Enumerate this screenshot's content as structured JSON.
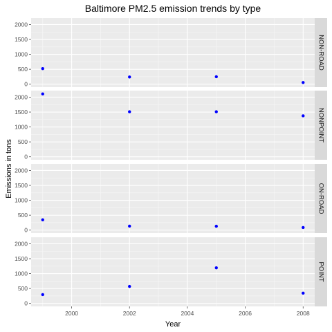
{
  "chart_data": {
    "type": "scatter",
    "title": "Baltimore PM2.5 emission trends by type",
    "xlabel": "Year",
    "ylabel": "Emissions in tons",
    "x_ticks": [
      2000,
      2002,
      2004,
      2006,
      2008
    ],
    "y_ticks": [
      0,
      500,
      1000,
      1500,
      2000
    ],
    "xlim": [
      1998.6,
      2008.4
    ],
    "ylim": [
      -100,
      2220
    ],
    "grid": true,
    "point_color": "#0000ff",
    "panel_background": "#ebebeb",
    "strip_background": "#d9d9d9",
    "facets": [
      {
        "label": "NON-ROAD",
        "x": [
          1999,
          2002,
          2005,
          2008
        ],
        "y": [
          522,
          241,
          249,
          56
        ]
      },
      {
        "label": "NONPOINT",
        "x": [
          1999,
          2002,
          2005,
          2008
        ],
        "y": [
          2108,
          1510,
          1510,
          1374
        ]
      },
      {
        "label": "ON-ROAD",
        "x": [
          1999,
          2002,
          2005,
          2008
        ],
        "y": [
          346,
          134,
          130,
          88
        ]
      },
      {
        "label": "POINT",
        "x": [
          1999,
          2002,
          2005,
          2008
        ],
        "y": [
          297,
          570,
          1195,
          345
        ]
      }
    ]
  }
}
